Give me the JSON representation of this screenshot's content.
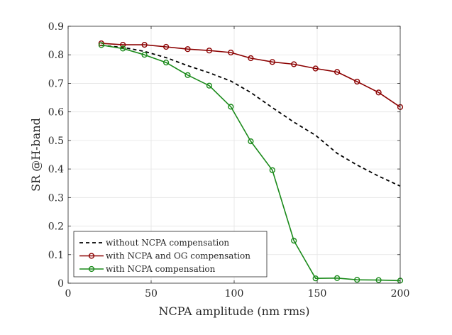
{
  "chart_data": {
    "type": "line",
    "title": "",
    "xlabel": "NCPA amplitude (nm rms)",
    "ylabel": "SR @H-band",
    "xlim": [
      0,
      200
    ],
    "ylim": [
      0,
      0.9
    ],
    "xticks": [
      0,
      50,
      100,
      150,
      200
    ],
    "yticks": [
      0,
      0.1,
      0.2,
      0.3,
      0.4,
      0.5,
      0.6,
      0.7,
      0.8,
      0.9
    ],
    "grid": true,
    "legend_position": "bottom-left",
    "series": [
      {
        "name": "without NCPA compensation",
        "color": "#000000",
        "style": "dashed",
        "marker": "none",
        "x": [
          20,
          33,
          46,
          59,
          72,
          85,
          98,
          110,
          123,
          136,
          149,
          162,
          174,
          187,
          200
        ],
        "y": [
          0.833,
          0.826,
          0.812,
          0.79,
          0.762,
          0.737,
          0.708,
          0.668,
          0.615,
          0.564,
          0.518,
          0.455,
          0.414,
          0.375,
          0.34
        ]
      },
      {
        "name": "with NCPA and OG compensation",
        "color": "#8b0000",
        "style": "solid",
        "marker": "circle",
        "x": [
          20,
          33,
          46,
          59,
          72,
          85,
          98,
          110,
          123,
          136,
          149,
          162,
          174,
          187,
          200
        ],
        "y": [
          0.84,
          0.835,
          0.835,
          0.828,
          0.82,
          0.815,
          0.808,
          0.788,
          0.775,
          0.767,
          0.752,
          0.74,
          0.706,
          0.668,
          0.617
        ]
      },
      {
        "name": "with NCPA compensation",
        "color": "#1a8a1a",
        "style": "solid",
        "marker": "circle",
        "x": [
          20,
          33,
          46,
          59,
          72,
          85,
          98,
          110,
          123,
          136,
          149,
          162,
          174,
          187,
          200
        ],
        "y": [
          0.834,
          0.822,
          0.8,
          0.773,
          0.729,
          0.692,
          0.618,
          0.497,
          0.396,
          0.149,
          0.017,
          0.018,
          0.012,
          0.011,
          0.009
        ]
      }
    ]
  }
}
